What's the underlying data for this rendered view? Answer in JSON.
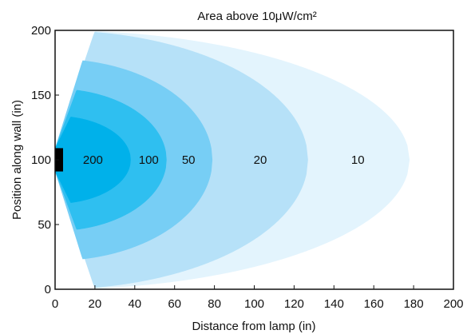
{
  "chart_data": {
    "type": "area",
    "title": "Area above 10μW/cm²",
    "xlabel": "Distance from lamp (in)",
    "ylabel": "Position along wall (in)",
    "xlim": [
      0,
      200
    ],
    "ylim": [
      0,
      200
    ],
    "xticks": [
      0,
      20,
      40,
      60,
      80,
      100,
      120,
      140,
      160,
      180,
      200
    ],
    "yticks": [
      0,
      50,
      100,
      150,
      200
    ],
    "grid": false,
    "lamp_marker": {
      "x_range": [
        0,
        4
      ],
      "y_range": [
        91,
        109
      ],
      "color": "#000000"
    },
    "regions": [
      {
        "label": "10",
        "color": "#e3f4fd",
        "apex_x": 178,
        "wall_intercept_y": [
          0,
          200
        ],
        "label_x": 152,
        "label_y": 100
      },
      {
        "label": "20",
        "color": "#b6e1f8",
        "apex_x": 127,
        "wall_intercept_y": [
          0,
          200
        ],
        "label_x": 103,
        "label_y": 100
      },
      {
        "label": "50",
        "color": "#77cef5",
        "apex_x": 79,
        "wall_intercept_y": [
          22,
          178
        ],
        "label_x": 67,
        "label_y": 100
      },
      {
        "label": "100",
        "color": "#2fbff0",
        "apex_x": 56,
        "wall_intercept_y": [
          45,
          155
        ],
        "label_x": 47,
        "label_y": 100
      },
      {
        "label": "200",
        "color": "#00b1ea",
        "apex_x": 38,
        "wall_intercept_y": [
          66,
          134
        ],
        "label_x": 19,
        "label_y": 100
      }
    ]
  }
}
